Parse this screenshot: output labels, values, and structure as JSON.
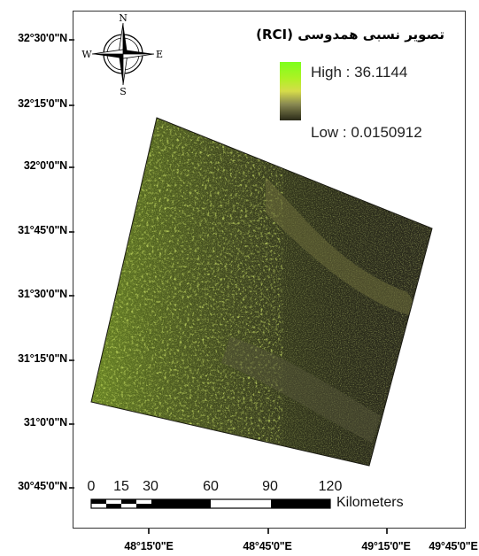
{
  "map": {
    "title": "تصویر نسبی همدوسی (RCI)",
    "legend": {
      "high_label": "High : 36.1144",
      "low_label": "Low : 0.0150912",
      "high_color": "#7dff1c",
      "low_color": "#2a2a18"
    },
    "latitude_labels": [
      "32°30'0\"N",
      "32°15'0\"N",
      "32°0'0\"N",
      "31°45'0\"N",
      "31°30'0\"N",
      "31°15'0\"N",
      "31°0'0\"N",
      "30°45'0\"N"
    ],
    "longitude_labels": [
      "48°15'0\"E",
      "48°45'0\"E",
      "49°15'0\"E",
      "49°45'0\"E"
    ],
    "compass": {
      "north": "N",
      "south": "S",
      "east": "E",
      "west": "W",
      "icon": "compass-rose-icon"
    },
    "scale_bar": {
      "ticks": [
        "0",
        "15",
        "30",
        "60",
        "90",
        "120"
      ],
      "unit": "Kilometers"
    },
    "raster": {
      "icon": "satellite-raster-image",
      "colors": {
        "bright": "#b8e62a",
        "mid": "#5a5a2a",
        "dark": "#1a1a12"
      }
    }
  }
}
